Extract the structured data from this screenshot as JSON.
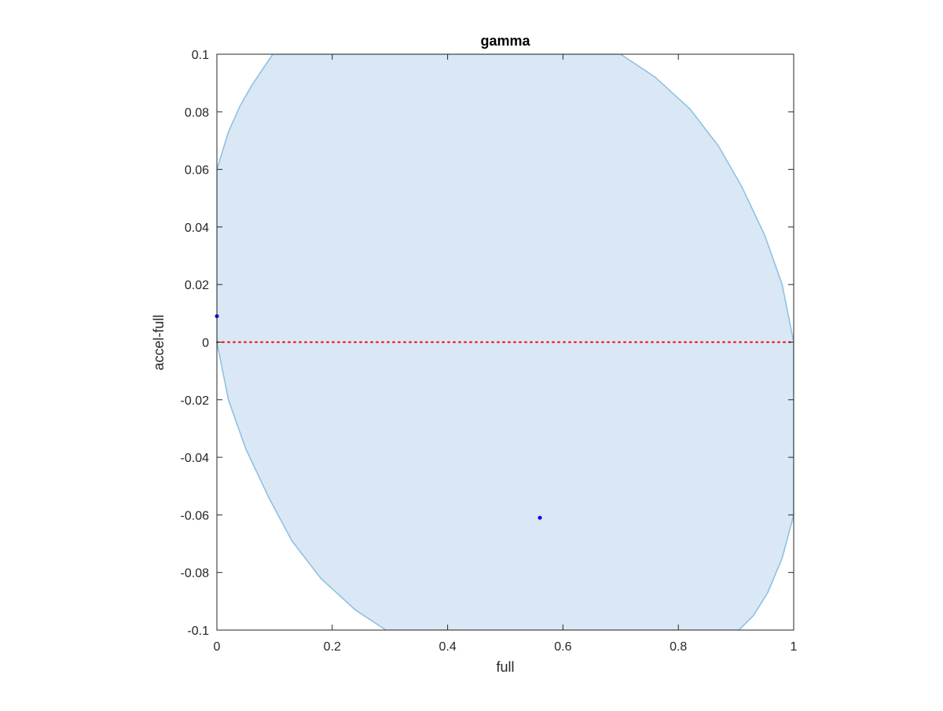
{
  "chart_data": {
    "type": "area",
    "title": "gamma",
    "xlabel": "full",
    "ylabel": "accel-full",
    "xlim": [
      0,
      1
    ],
    "ylim": [
      -0.1,
      0.1
    ],
    "xticks": [
      0,
      0.2,
      0.4,
      0.6,
      0.8,
      1
    ],
    "xtick_labels": [
      "0",
      "0.2",
      "0.4",
      "0.6",
      "0.8",
      "1"
    ],
    "yticks": [
      0.1,
      0.08,
      0.06,
      0.04,
      0.02,
      0,
      -0.02,
      -0.04,
      -0.06,
      -0.08,
      -0.1
    ],
    "ytick_labels": [
      "0.1",
      "0.08",
      "0.06",
      "0.04",
      "0.02",
      "0",
      "-0.02",
      "-0.04",
      "-0.06",
      "-0.08",
      "-0.1"
    ],
    "grid": false,
    "region": {
      "fill_color": "#d9e8f4",
      "edge_color": "#8fc1e3",
      "boundary": [
        [
          0.0,
          0.06
        ],
        [
          0.02,
          0.073
        ],
        [
          0.04,
          0.082
        ],
        [
          0.06,
          0.089
        ],
        [
          0.08,
          0.095
        ],
        [
          0.097,
          0.1
        ],
        [
          0.7,
          0.1
        ],
        [
          0.76,
          0.092
        ],
        [
          0.82,
          0.081
        ],
        [
          0.87,
          0.068
        ],
        [
          0.91,
          0.054
        ],
        [
          0.95,
          0.037
        ],
        [
          0.98,
          0.02
        ],
        [
          1.0,
          0.0
        ],
        [
          1.0,
          -0.06
        ],
        [
          0.98,
          -0.075
        ],
        [
          0.955,
          -0.087
        ],
        [
          0.93,
          -0.095
        ],
        [
          0.905,
          -0.1
        ],
        [
          0.293,
          -0.1
        ],
        [
          0.24,
          -0.093
        ],
        [
          0.18,
          -0.082
        ],
        [
          0.13,
          -0.069
        ],
        [
          0.09,
          -0.054
        ],
        [
          0.05,
          -0.037
        ],
        [
          0.02,
          -0.02
        ],
        [
          0.0,
          0.0
        ]
      ]
    },
    "reference_line": {
      "y": 0,
      "color": "#ff0000",
      "style": "dotted"
    },
    "points": [
      {
        "x": 0.0,
        "y": 0.009,
        "color": "#0000ff"
      },
      {
        "x": 0.56,
        "y": -0.061,
        "color": "#0000ff"
      }
    ]
  }
}
